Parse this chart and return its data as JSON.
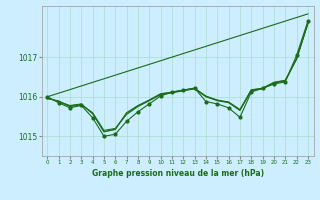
{
  "title": "Graphe pression niveau de la mer (hPa)",
  "background_color": "#cceeff",
  "grid_color": "#aaddcc",
  "line_color": "#1a6b1a",
  "text_color": "#1a6b1a",
  "xlim": [
    -0.5,
    23.5
  ],
  "ylim": [
    1014.5,
    1018.3
  ],
  "yticks": [
    1015,
    1016,
    1017
  ],
  "xticks": [
    0,
    1,
    2,
    3,
    4,
    5,
    6,
    7,
    8,
    9,
    10,
    11,
    12,
    13,
    14,
    15,
    16,
    17,
    18,
    19,
    20,
    21,
    22,
    23
  ],
  "series": {
    "upper_line_x": [
      0,
      23
    ],
    "upper_line_y": [
      1016.0,
      1018.1
    ],
    "smooth1_x": [
      0,
      1,
      2,
      3,
      4,
      5,
      6,
      7,
      8,
      9,
      10,
      11,
      12,
      13,
      14,
      15,
      16,
      17,
      18,
      19,
      20,
      21,
      22,
      23
    ],
    "smooth1_y": [
      1015.95,
      1015.9,
      1015.75,
      1015.8,
      1015.6,
      1015.15,
      1015.2,
      1015.55,
      1015.75,
      1015.9,
      1016.05,
      1016.1,
      1016.15,
      1016.2,
      1016.0,
      1015.9,
      1015.85,
      1015.65,
      1016.15,
      1016.2,
      1016.35,
      1016.4,
      1016.95,
      1017.85
    ],
    "smooth2_x": [
      0,
      1,
      2,
      3,
      4,
      5,
      6,
      7,
      8,
      9,
      10,
      11,
      12,
      13,
      14,
      15,
      16,
      17,
      18,
      19,
      20,
      21,
      22,
      23
    ],
    "smooth2_y": [
      1015.97,
      1015.88,
      1015.78,
      1015.82,
      1015.58,
      1015.12,
      1015.18,
      1015.6,
      1015.78,
      1015.92,
      1016.08,
      1016.12,
      1016.17,
      1016.22,
      1016.02,
      1015.92,
      1015.87,
      1015.68,
      1016.18,
      1016.22,
      1016.37,
      1016.42,
      1016.97,
      1017.87
    ],
    "smooth3_x": [
      0,
      1,
      2,
      3,
      4,
      5,
      6,
      7,
      8,
      9,
      10,
      11,
      12,
      13,
      14,
      15,
      16,
      17,
      18,
      19,
      20,
      21,
      22,
      23
    ],
    "smooth3_y": [
      1015.98,
      1015.87,
      1015.77,
      1015.81,
      1015.57,
      1015.11,
      1015.17,
      1015.58,
      1015.77,
      1015.91,
      1016.07,
      1016.11,
      1016.16,
      1016.21,
      1016.01,
      1015.91,
      1015.86,
      1015.67,
      1016.17,
      1016.21,
      1016.36,
      1016.41,
      1016.96,
      1017.86
    ],
    "detailed_x": [
      0,
      1,
      2,
      3,
      4,
      5,
      6,
      7,
      8,
      9,
      10,
      11,
      12,
      13,
      14,
      15,
      16,
      17,
      18,
      19,
      20,
      21,
      22,
      23
    ],
    "detailed_y": [
      1016.0,
      1015.85,
      1015.72,
      1015.78,
      1015.47,
      1015.0,
      1015.05,
      1015.38,
      1015.62,
      1015.82,
      1016.02,
      1016.12,
      1016.17,
      1016.22,
      1015.88,
      1015.82,
      1015.72,
      1015.48,
      1016.12,
      1016.22,
      1016.32,
      1016.38,
      1017.05,
      1017.92
    ]
  }
}
